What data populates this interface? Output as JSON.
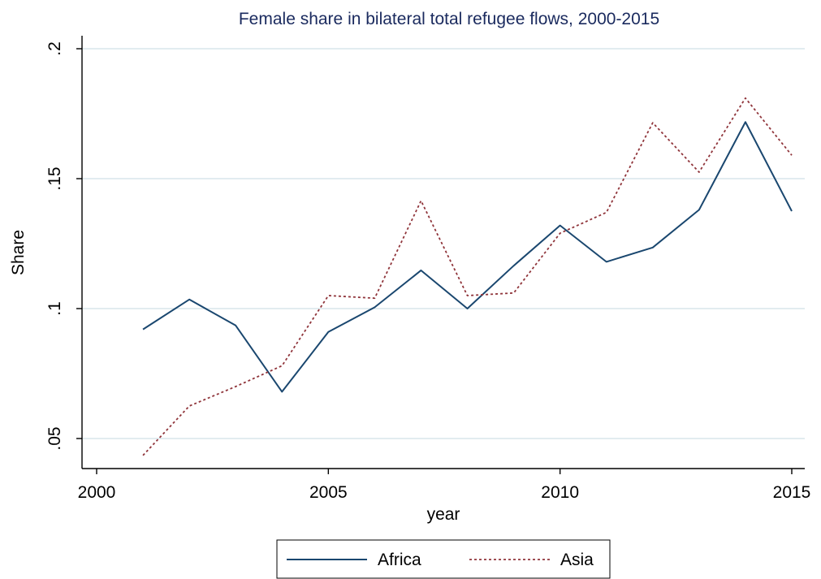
{
  "chart_data": {
    "type": "line",
    "title": "Female share in bilateral total refugee flows, 2000-2015",
    "xlabel": "year",
    "ylabel": "Share",
    "xlim": [
      2000,
      2015
    ],
    "ylim": [
      0.04,
      0.215
    ],
    "x_ticks": [
      2000,
      2005,
      2010,
      2015
    ],
    "x_tick_labels": [
      "2000",
      "2005",
      "2010",
      "2015"
    ],
    "y_ticks": [
      0.05,
      0.1,
      0.15,
      0.2
    ],
    "y_tick_labels": [
      ".05",
      ".1",
      ".15",
      ".2"
    ],
    "grid": true,
    "legend_position": "bottom",
    "x": [
      2001,
      2002,
      2003,
      2004,
      2005,
      2006,
      2007,
      2008,
      2009,
      2010,
      2011,
      2012,
      2013,
      2014,
      2015
    ],
    "series": [
      {
        "name": "Africa",
        "color": "#1a476f",
        "style": "solid",
        "values": [
          0.092,
          0.1035,
          0.0935,
          0.068,
          0.091,
          0.1005,
          0.1147,
          0.1,
          0.1165,
          0.132,
          0.118,
          0.1235,
          0.138,
          0.1718,
          0.1375
        ]
      },
      {
        "name": "Asia",
        "color": "#90353b",
        "style": "dotted",
        "values": [
          0.0435,
          0.0625,
          0.07,
          0.078,
          0.105,
          0.104,
          0.1415,
          0.105,
          0.106,
          0.129,
          0.137,
          0.1715,
          0.1525,
          0.181,
          0.159
        ]
      }
    ],
    "colors": {
      "grid": "#d9e6eb",
      "title": "#1a2a5e",
      "axis": "#000000"
    }
  }
}
